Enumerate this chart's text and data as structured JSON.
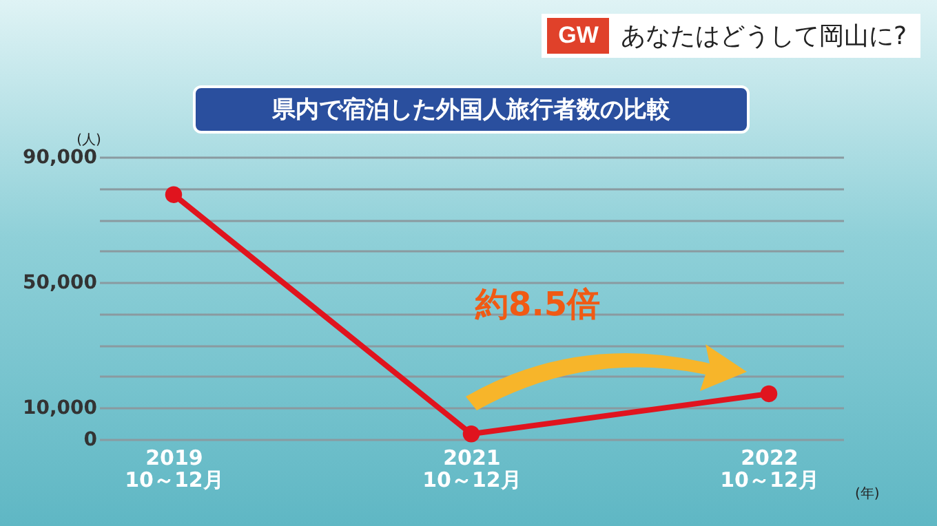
{
  "chart_data": {
    "type": "line",
    "title": "県内で宿泊した外国人旅行者数の比較",
    "subtitle": "あなたはどうして岡山に?",
    "ylabel": "(人)",
    "xlabel": "(年)",
    "annotations": [
      "GW",
      "約8.5倍"
    ],
    "categories": [
      "2019\n10～12月",
      "2021\n10～12月",
      "2022\n10～12月"
    ],
    "series": [
      {
        "color": "#e0141e",
        "values": [
          78000,
          1700,
          14500
        ]
      }
    ],
    "ylim": [
      0,
      90000
    ],
    "yticks": [
      0,
      {
        "value": 10000,
        "label": "10,000"
      },
      {
        "value": 20000,
        "label": null
      },
      {
        "value": 30000,
        "label": null
      },
      {
        "value": 40000,
        "label": null
      },
      {
        "value": 50000,
        "label": "50,000"
      },
      {
        "value": 60000,
        "label": null
      },
      {
        "value": 70000,
        "label": null
      },
      {
        "value": 80000,
        "label": null
      },
      {
        "value": 90000,
        "label": "90,000"
      }
    ],
    "grid": "y",
    "marker": "circle",
    "line_style": "solid",
    "legend": false
  }
}
